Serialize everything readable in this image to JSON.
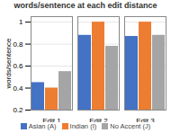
{
  "chart_data": {
    "type": "bar",
    "title": "words/sentence at each edit distance",
    "categories": [
      "Edit 1",
      "Edit 2",
      "Edit 3"
    ],
    "series": [
      {
        "name": "Asian (A)",
        "color": "#4472c4",
        "values": [
          0.45,
          0.88,
          0.87
        ]
      },
      {
        "name": "Indian (I)",
        "color": "#ed7d31",
        "values": [
          0.4,
          1.0,
          1.0
        ]
      },
      {
        "name": "No Accent (J)",
        "color": "#a5a5a5",
        "values": [
          0.55,
          0.78,
          0.88
        ]
      }
    ],
    "ylabel": "words/sentence",
    "ylim": [
      0.2,
      1.05
    ],
    "yticks": [
      0.2,
      0.4,
      0.6,
      0.8,
      1
    ],
    "grid": true,
    "legend": "bottom"
  }
}
